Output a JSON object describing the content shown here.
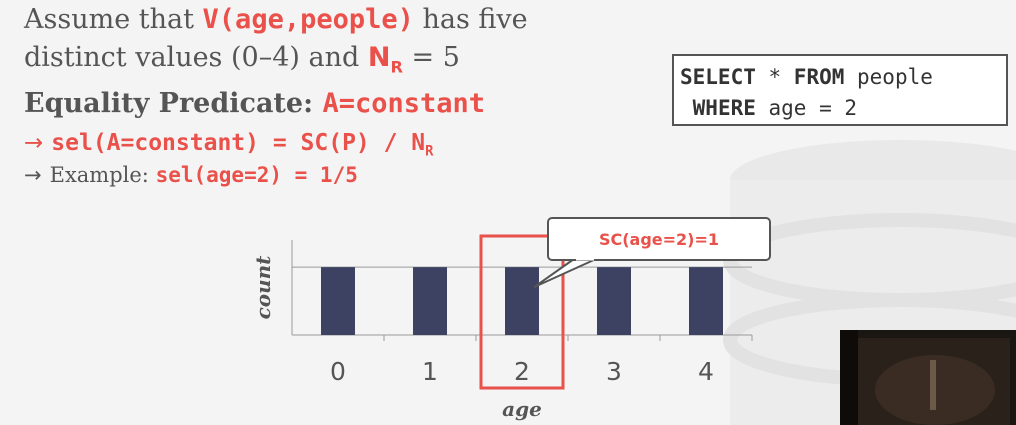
{
  "slide": {
    "line1": {
      "pre": "Assume that ",
      "code": "V(age,people)",
      "post": " has five"
    },
    "line2": {
      "pre": "distinct values (0–4) and ",
      "nr_main": "N",
      "nr_sub": "R",
      "post": " = 5"
    },
    "line3": {
      "label": "Equality Predicate: ",
      "code": "A=constant"
    },
    "line4": {
      "arrow": "→",
      "code": "sel(A=constant) = SC(P) / N",
      "sub": "R"
    },
    "line5": {
      "arrow": "→",
      "text": "Example: ",
      "code": "sel(age=2) = 1/5"
    }
  },
  "sql": {
    "line1_kw1": "SELECT",
    "line1_mid": " * ",
    "line1_kw2": "FROM",
    "line1_rest": " people",
    "line2_kw": "WHERE",
    "line2_rest": " age = 2"
  },
  "callout": "SC(age=2)=1",
  "colors": {
    "bar": "#3d4262",
    "highlight": "#e9514a",
    "text": "#555555"
  },
  "chart_data": {
    "type": "bar",
    "categories": [
      "0",
      "1",
      "2",
      "3",
      "4"
    ],
    "values": [
      1,
      1,
      1,
      1,
      1
    ],
    "ylim": [
      0,
      1.4
    ],
    "xlabel": "age",
    "ylabel": "count",
    "highlight_category": "2",
    "grid": true
  }
}
